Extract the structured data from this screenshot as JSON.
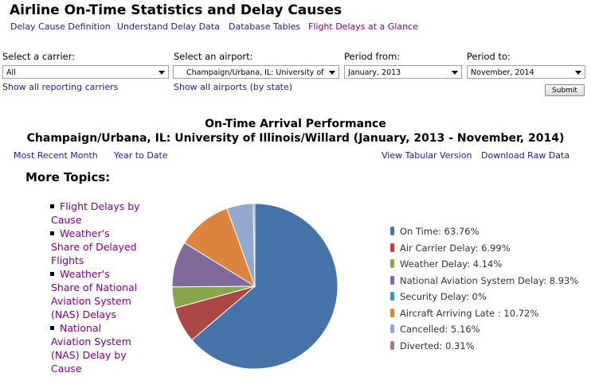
{
  "page": {
    "title": "Airline On-Time Statistics and Delay Causes"
  },
  "nav_links": [
    {
      "label": "Delay Cause Definition"
    },
    {
      "label": "Understand Delay Data"
    },
    {
      "label": "Database Tables"
    },
    {
      "label": "Flight Delays at a Glance"
    }
  ],
  "filters": {
    "carrier_label": "Select a carrier:",
    "carrier_value": "All",
    "airport_label": "Select an airport:",
    "airport_value": "Champaign/Urbana, IL: University of",
    "period_from_label": "Period from:",
    "period_from_value": "January, 2013",
    "period_to_label": "Period to:",
    "period_to_value": "November, 2014",
    "show_carriers_link": "Show all reporting carriers",
    "show_airports_link": "Show all airports (by state)",
    "submit_label": "Submit"
  },
  "report": {
    "heading": "On-Time Arrival Performance",
    "subheading": "Champaign/Urbana, IL: University of Illinois/Willard (January, 2013 - November, 2014)",
    "most_recent_link": "Most Recent Month",
    "ytd_link": "Year to Date",
    "tabular_link": "View Tabular Version",
    "raw_link": "Download Raw Data"
  },
  "more_topics": {
    "heading": "More Topics:",
    "items": [
      {
        "label": "Flight Delays by Cause"
      },
      {
        "label": "Weather's Share of Delayed Flights"
      },
      {
        "label": "Weather's Share of National Aviation System (NAS) Delays"
      },
      {
        "label": "National Aviation System (NAS) Delay by Cause"
      }
    ]
  },
  "chart_data": {
    "type": "pie",
    "slices": [
      {
        "label": "On Time: 63.76%",
        "value": 63.76,
        "color": "#4572a7"
      },
      {
        "label": "Air Carrier Delay: 6.99%",
        "value": 6.99,
        "color": "#aa4643"
      },
      {
        "label": "Weather Delay: 4.14%",
        "value": 4.14,
        "color": "#89a54e"
      },
      {
        "label": "National Aviation System Delay: 8.93%",
        "value": 8.93,
        "color": "#80699b"
      },
      {
        "label": "Security Delay: 0%",
        "value": 0,
        "color": "#3d96ae"
      },
      {
        "label": "Aircraft Arriving Late : 10.72%",
        "value": 10.72,
        "color": "#db843d"
      },
      {
        "label": "Cancelled: 5.16%",
        "value": 5.16,
        "color": "#92a8cd"
      },
      {
        "label": "Diverted: 0.31%",
        "value": 0.31,
        "color": "#a47d7c"
      }
    ],
    "legend_position": "right"
  }
}
